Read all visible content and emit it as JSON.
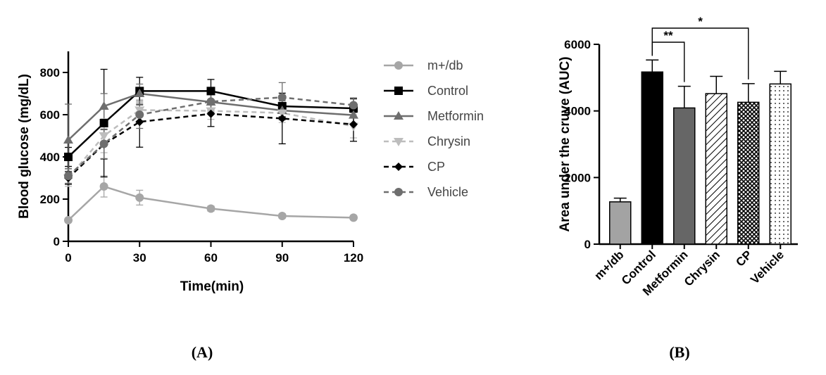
{
  "chart_data": [
    {
      "type": "line",
      "panel_label": "A",
      "xlabel": "Time(min)",
      "ylabel": "Blood glucose (mg/dL)",
      "xlim": [
        0,
        120
      ],
      "ylim": [
        0,
        900
      ],
      "x_ticks": [
        0,
        30,
        60,
        90,
        120
      ],
      "y_ticks": [
        0,
        200,
        400,
        600,
        800
      ],
      "x": [
        0,
        15,
        30,
        60,
        90,
        120
      ],
      "legend_position": "right",
      "series": [
        {
          "name": "m+/db",
          "color": "#a6a6a6",
          "marker": "circle",
          "dashed": false,
          "values": [
            100,
            260,
            207,
            155,
            120,
            112
          ],
          "errors": [
            10,
            50,
            35,
            12,
            10,
            10
          ]
        },
        {
          "name": "Control",
          "color": "#000000",
          "marker": "square",
          "dashed": false,
          "values": [
            400,
            560,
            712,
            712,
            640,
            630
          ],
          "errors": [
            45,
            255,
            65,
            55,
            50,
            45
          ]
        },
        {
          "name": "Metformin",
          "color": "#6e6e6e",
          "marker": "triangle-up",
          "dashed": false,
          "values": [
            480,
            640,
            700,
            660,
            620,
            598
          ],
          "errors": [
            170,
            60,
            45,
            40,
            45,
            45
          ]
        },
        {
          "name": "Chrysin",
          "color": "#bdbdbd",
          "marker": "triangle-down",
          "dashed": true,
          "values": [
            300,
            500,
            622,
            618,
            608,
            545
          ],
          "errors": [
            40,
            80,
            50,
            40,
            45,
            55
          ]
        },
        {
          "name": "CP",
          "color": "#000000",
          "marker": "diamond",
          "dashed": true,
          "values": [
            300,
            460,
            566,
            604,
            582,
            554
          ],
          "errors": [
            30,
            70,
            120,
            60,
            120,
            80
          ]
        },
        {
          "name": "Vehicle",
          "color": "#6e6e6e",
          "marker": "circle",
          "dashed": true,
          "values": [
            310,
            462,
            600,
            662,
            682,
            645
          ],
          "errors": [
            35,
            70,
            65,
            50,
            70,
            35
          ]
        }
      ]
    },
    {
      "type": "bar",
      "panel_label": "B",
      "ylabel": "Area under the cruve (AUC)",
      "ylim": [
        0,
        6000
      ],
      "y_ticks": [
        0,
        2000,
        4000,
        6000
      ],
      "categories": [
        "m+/db",
        "Control",
        "Metformin",
        "Chrysin",
        "CP",
        "Vehicle"
      ],
      "values": [
        1270,
        5170,
        4090,
        4520,
        4260,
        4810
      ],
      "errors": [
        110,
        360,
        650,
        520,
        560,
        380
      ],
      "bar_colors": [
        "#a3a3a3",
        "#000000",
        "#666666",
        "#ffffff",
        "#ffffff",
        "#ffffff"
      ],
      "bar_patterns": [
        "solid",
        "solid",
        "solid",
        "diagonal-hatch",
        "cross-hatch",
        "dots"
      ],
      "significance": [
        {
          "from": "Control",
          "to": "Metformin",
          "label": "**"
        },
        {
          "from": "Control",
          "to": "CP",
          "label": "*"
        }
      ]
    }
  ]
}
